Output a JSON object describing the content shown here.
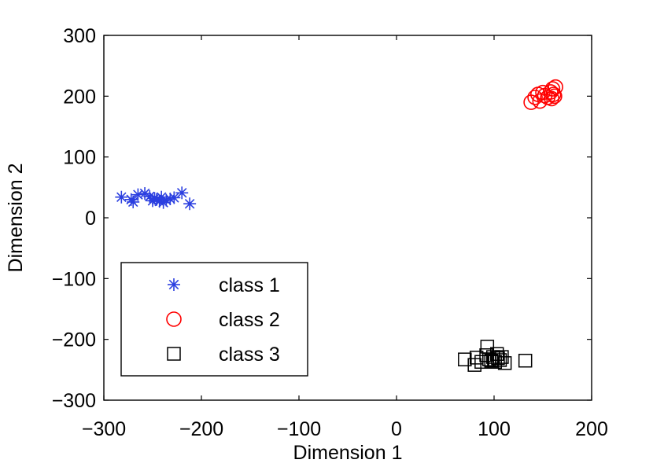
{
  "chart_data": {
    "type": "scatter",
    "xlabel": "Dimension 1",
    "ylabel": "Dimension 2",
    "xlim": [
      -300,
      200
    ],
    "ylim": [
      -300,
      300
    ],
    "xticks": [
      -300,
      -200,
      -100,
      0,
      100,
      200
    ],
    "yticks": [
      -300,
      -200,
      -100,
      0,
      100,
      200,
      300
    ],
    "xtick_labels": [
      "−300",
      "−200",
      "−100",
      "0",
      "100",
      "200"
    ],
    "ytick_labels": [
      "−300",
      "−200",
      "−100",
      "0",
      "100",
      "200",
      "300"
    ],
    "grid": false,
    "legend_position": "bottom-left",
    "series": [
      {
        "name": "class 1",
        "marker": "asterisk",
        "color": "#2b3fe0",
        "points": [
          [
            -282,
            34
          ],
          [
            -272,
            30
          ],
          [
            -270,
            26
          ],
          [
            -265,
            38
          ],
          [
            -258,
            40
          ],
          [
            -253,
            35
          ],
          [
            -250,
            28
          ],
          [
            -248,
            32
          ],
          [
            -246,
            30
          ],
          [
            -243,
            27
          ],
          [
            -241,
            34
          ],
          [
            -239,
            25
          ],
          [
            -236,
            29
          ],
          [
            -232,
            31
          ],
          [
            -228,
            33
          ],
          [
            -220,
            41
          ],
          [
            -212,
            23
          ]
        ]
      },
      {
        "name": "class 2",
        "marker": "circle",
        "color": "#ff0000",
        "points": [
          [
            138,
            190
          ],
          [
            142,
            198
          ],
          [
            145,
            203
          ],
          [
            147,
            192
          ],
          [
            150,
            206
          ],
          [
            152,
            201
          ],
          [
            155,
            198
          ],
          [
            158,
            207
          ],
          [
            159,
            196
          ],
          [
            160,
            212
          ],
          [
            161,
            203
          ],
          [
            162,
            200
          ],
          [
            163,
            215
          ]
        ]
      },
      {
        "name": "class 3",
        "marker": "square",
        "color": "#000000",
        "points": [
          [
            70,
            -233
          ],
          [
            80,
            -242
          ],
          [
            82,
            -230
          ],
          [
            87,
            -237
          ],
          [
            92,
            -226
          ],
          [
            93,
            -212
          ],
          [
            95,
            -233
          ],
          [
            97,
            -235
          ],
          [
            99,
            -229
          ],
          [
            101,
            -237
          ],
          [
            103,
            -224
          ],
          [
            104,
            -231
          ],
          [
            106,
            -234
          ],
          [
            108,
            -229
          ],
          [
            111,
            -239
          ],
          [
            132,
            -235
          ]
        ]
      }
    ]
  }
}
